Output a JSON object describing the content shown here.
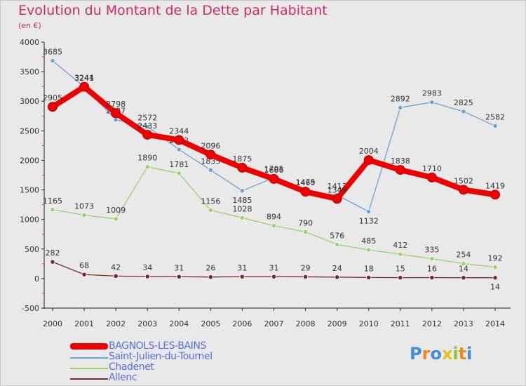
{
  "header": {
    "title": "Evolution du Montant de la Dette par Habitant",
    "subtitle": "(en €)"
  },
  "chart_data": {
    "type": "line",
    "x": [
      2000,
      2001,
      2002,
      2003,
      2004,
      2005,
      2006,
      2007,
      2008,
      2009,
      2010,
      2011,
      2012,
      2013,
      2014
    ],
    "x_tick_labels": [
      "2000",
      "2001",
      "2002",
      "2003",
      "2004",
      "2005",
      "2006",
      "2007",
      "2008",
      "2009",
      "2010",
      "2011",
      "2012",
      "2013",
      "2014"
    ],
    "ylim": [
      -500,
      4000
    ],
    "y_ticks": [
      -500,
      0,
      500,
      1000,
      1500,
      2000,
      2500,
      3000,
      3500,
      4000
    ],
    "y_tick_labels": [
      "-500",
      "0",
      "500",
      "1000",
      "1500",
      "2000",
      "2500",
      "3000",
      "3500",
      "4000"
    ],
    "grid": false,
    "legend_position": "bottom-left",
    "series": [
      {
        "name": "Saint-Julien-du-Tournel",
        "color": "#6aa3d4",
        "values": [
          3685,
          3241,
          2687,
          2572,
          2182,
          1835,
          1485,
          1705,
          1475,
          1413,
          1132,
          2892,
          2983,
          2825,
          2582
        ],
        "labels": [
          "3685",
          "3241",
          "2687",
          "2572",
          "2182",
          "1835",
          "1485",
          "1705",
          "1475",
          "1413",
          "1132",
          "2892",
          "2983",
          "2825",
          "2582"
        ],
        "label_side": [
          "above",
          "above",
          "above",
          "above",
          "above",
          "above",
          "below",
          "above",
          "above",
          "above",
          "below",
          "above",
          "above",
          "above",
          "above"
        ]
      },
      {
        "name": "Chadenet",
        "color": "#98d46a",
        "values": [
          1165,
          1073,
          1009,
          1890,
          1781,
          1156,
          1028,
          894,
          790,
          576,
          485,
          412,
          335,
          254,
          192
        ],
        "labels": [
          "1165",
          "1073",
          "1009",
          "1890",
          "1781",
          "1156",
          "1028",
          "894",
          "790",
          "576",
          "485",
          "412",
          "335",
          "254",
          "192"
        ],
        "label_side": [
          "above",
          "above",
          "above",
          "above",
          "above",
          "above",
          "above",
          "above",
          "above",
          "above",
          "above",
          "above",
          "above",
          "above",
          "above"
        ]
      },
      {
        "name": "Allenc",
        "color": "#7a2a2e",
        "values": [
          282,
          68,
          42,
          34,
          31,
          26,
          31,
          31,
          29,
          24,
          18,
          15,
          16,
          14,
          14
        ],
        "labels": [
          "282",
          "68",
          "42",
          "34",
          "31",
          "26",
          "31",
          "31",
          "29",
          "24",
          "18",
          "15",
          "16",
          "14",
          "14"
        ],
        "label_side": [
          "above",
          "above",
          "above",
          "above",
          "above",
          "above",
          "above",
          "above",
          "above",
          "above",
          "above",
          "above",
          "above",
          "above",
          "below"
        ]
      },
      {
        "name": "BAGNOLS-LES-BAINS",
        "color": "#ee0000",
        "values": [
          2905,
          3244,
          2798,
          2433,
          2344,
          2096,
          1875,
          1686,
          1469,
          1349,
          2004,
          1838,
          1710,
          1502,
          1419
        ],
        "labels": [
          "2905",
          "3244",
          "2798",
          "2433",
          "2344",
          "2096",
          "1875",
          "1686",
          "1469",
          "1349",
          "2004",
          "1838",
          "1710",
          "1502",
          "1419"
        ],
        "label_side": [
          "above",
          "above",
          "above",
          "above",
          "above",
          "above",
          "above",
          "above",
          "above",
          "above",
          "above",
          "above",
          "above",
          "above",
          "above"
        ]
      }
    ]
  },
  "legend": {
    "items": [
      {
        "label": "BAGNOLS-LES-BAINS",
        "color": "#ee0000",
        "thick": true
      },
      {
        "label": "Saint-Julien-du-Tournel",
        "color": "#6aa3d4",
        "thick": false
      },
      {
        "label": "Chadenet",
        "color": "#98d46a",
        "thick": false
      },
      {
        "label": "Allenc",
        "color": "#7a2a2e",
        "thick": false
      }
    ]
  },
  "logo": {
    "text": "Proxiti",
    "colors": [
      "#3e8ed8",
      "#f08a1e",
      "#3e8ed8",
      "#e8c21a",
      "#8ac43c",
      "#f08a1e",
      "#3e8ed8"
    ]
  }
}
